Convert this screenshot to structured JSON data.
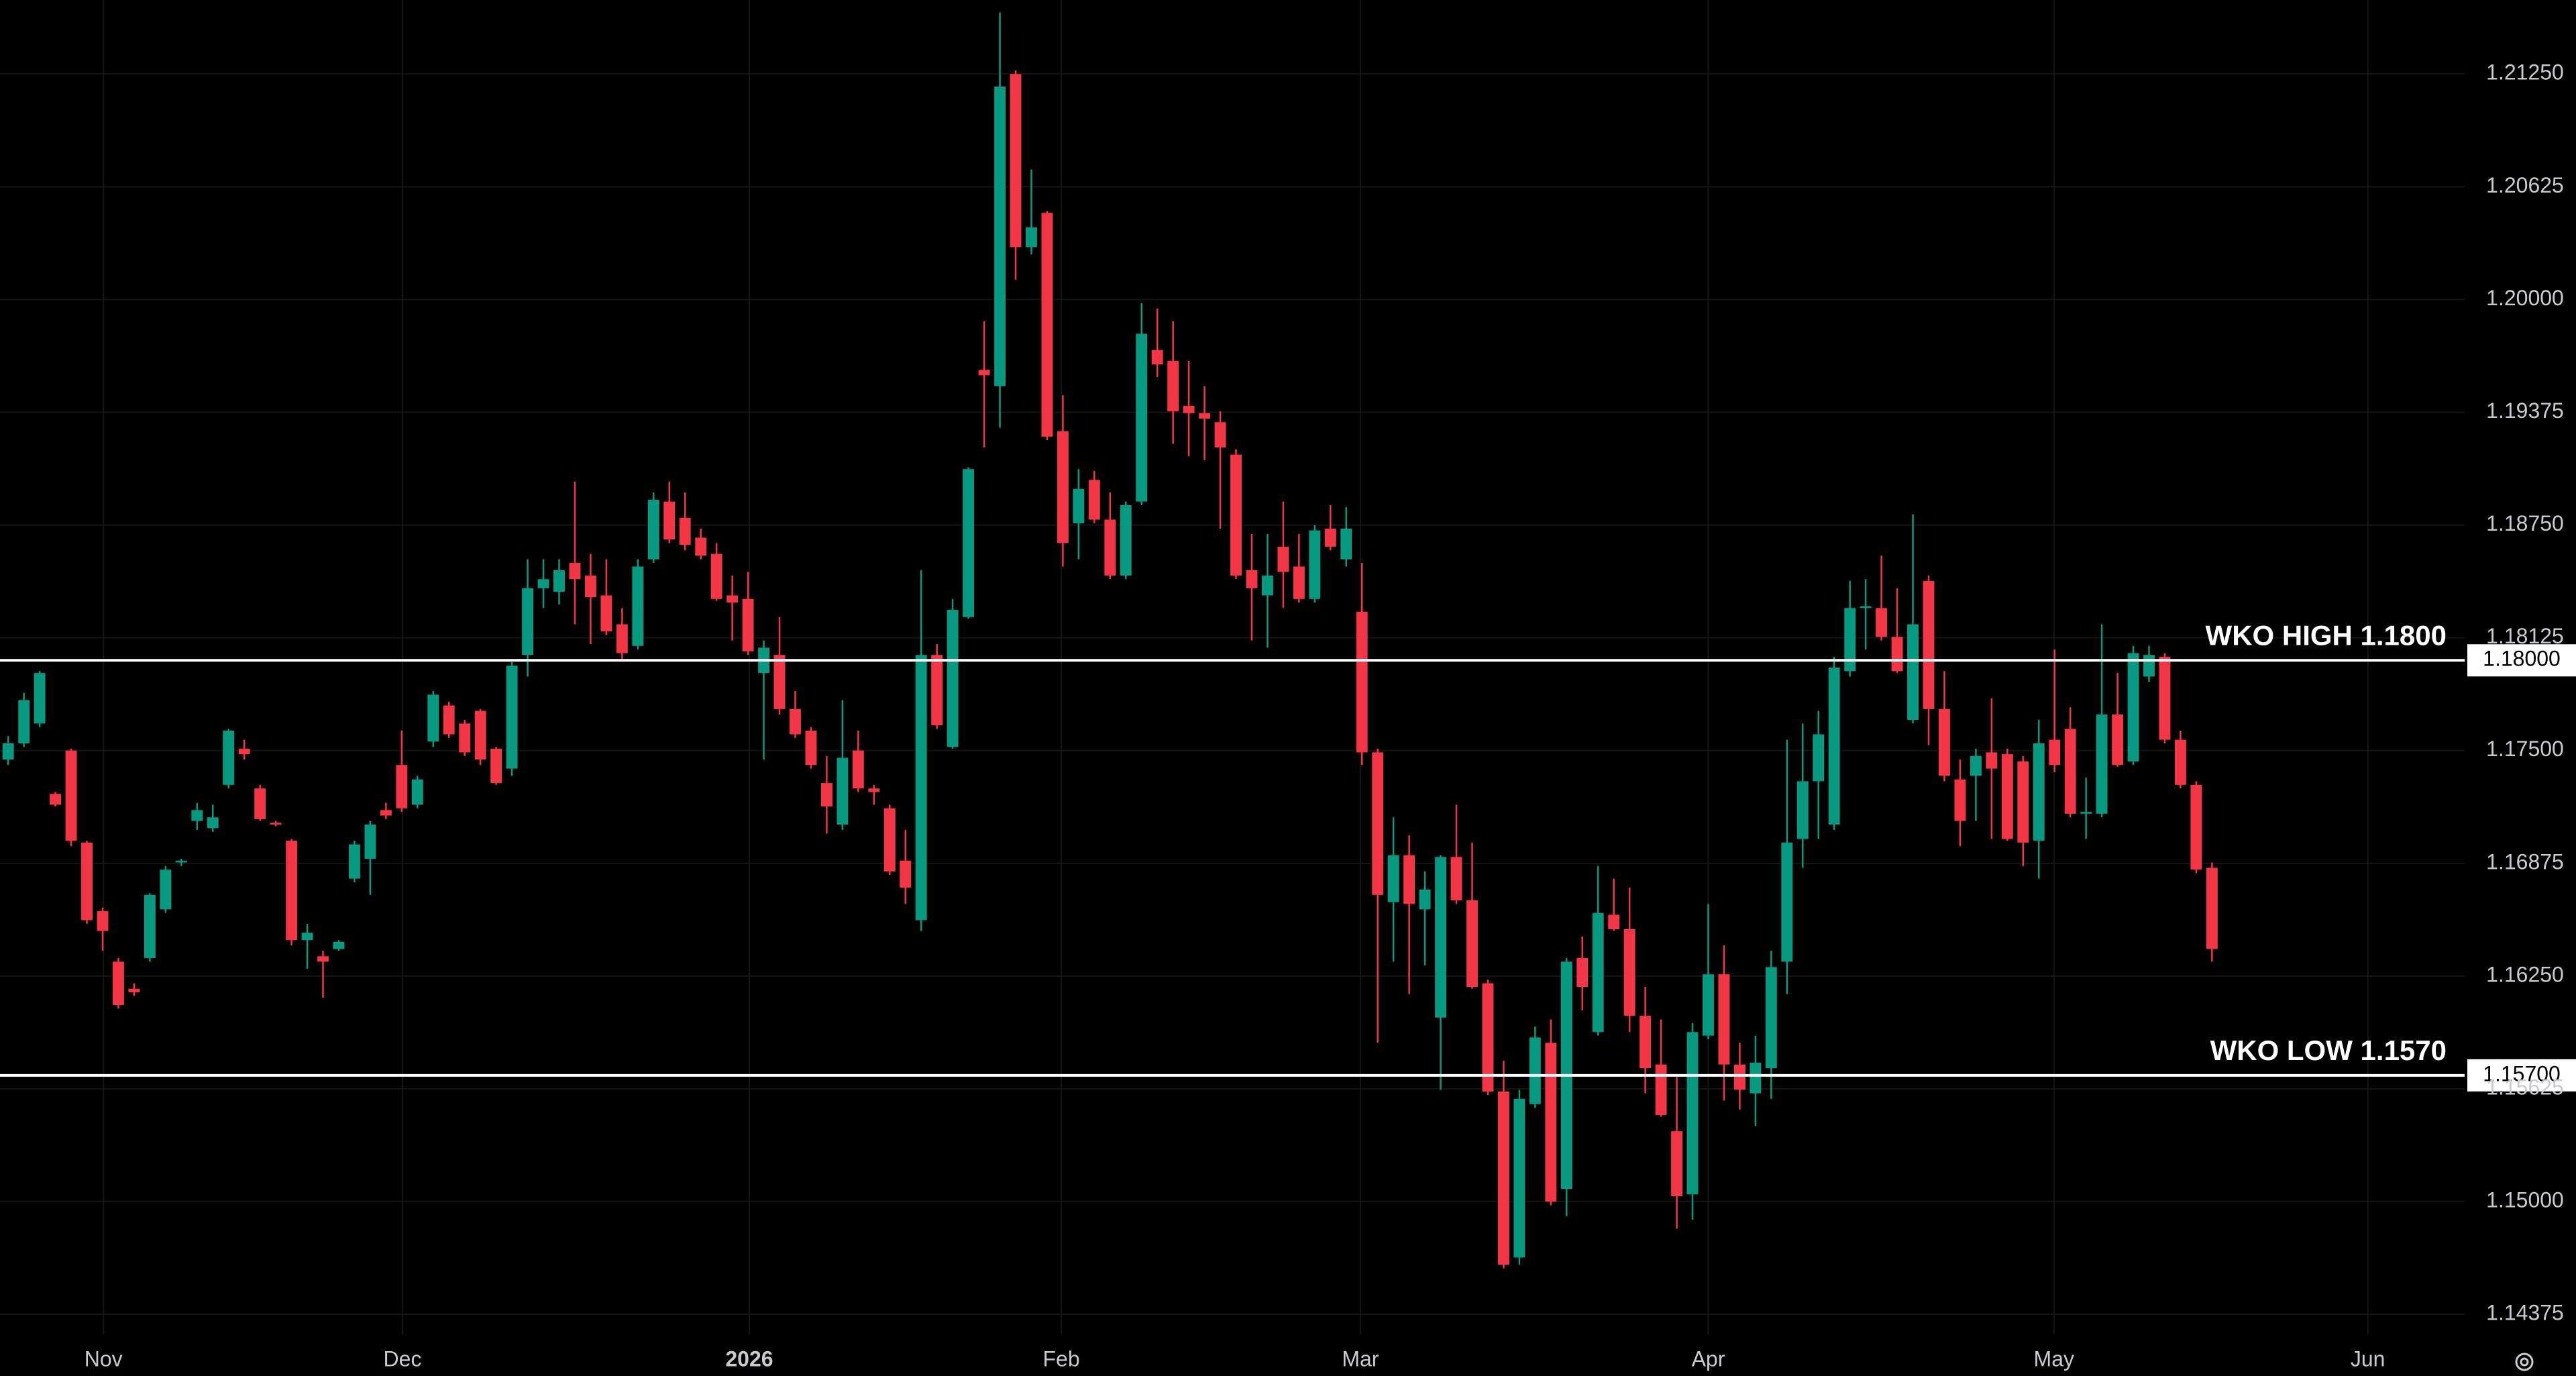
{
  "chart_data": {
    "type": "candlestick",
    "up_color": "#089981",
    "down_color": "#f23645",
    "grid": true,
    "xlim": [
      -0.52,
      156.05
    ],
    "xticks": [
      {
        "value": 6.05,
        "label": "Nov"
      },
      {
        "value": 25.05,
        "label": "Dec"
      },
      {
        "value": 47.08,
        "label": "2026"
      },
      {
        "value": 66.9,
        "label": "Feb"
      },
      {
        "value": 85.9,
        "label": "Mar"
      },
      {
        "value": 108.0,
        "label": "Apr"
      },
      {
        "value": 129.96,
        "label": "May"
      },
      {
        "value": 149.9,
        "label": "Jun"
      }
    ],
    "ylim": [
      1.14264,
      1.2166
    ],
    "yticks": [
      {
        "value": 1.14375,
        "label": "1.14375"
      },
      {
        "value": 1.15,
        "label": "1.15000"
      },
      {
        "value": 1.15625,
        "label": "1.15625"
      },
      {
        "value": 1.1625,
        "label": "1.16250"
      },
      {
        "value": 1.16875,
        "label": "1.16875"
      },
      {
        "value": 1.175,
        "label": "1.17500"
      },
      {
        "value": 1.18125,
        "label": "1.18125"
      },
      {
        "value": 1.1875,
        "label": "1.18750"
      },
      {
        "value": 1.19375,
        "label": "1.19375"
      },
      {
        "value": 1.2,
        "label": "1.20000"
      },
      {
        "value": 1.20625,
        "label": "1.20625"
      },
      {
        "value": 1.2125,
        "label": "1.21250"
      }
    ],
    "levels": [
      {
        "value": 1.18,
        "label": "WKO HIGH 1.1800",
        "price_label": "1.18000"
      },
      {
        "value": 1.157,
        "label": "WKO LOW 1.1570",
        "price_label": "1.15700"
      }
    ],
    "open": [
      1.1745,
      1.1754,
      1.1765,
      1.1726,
      1.175,
      1.1699,
      1.1661,
      1.1633,
      1.1618,
      1.1635,
      1.1662,
      1.1688,
      1.1711,
      1.1707,
      1.1731,
      1.1751,
      1.1729,
      1.171,
      1.17,
      1.1645,
      1.1636,
      1.164,
      1.1679,
      1.169,
      1.1717,
      1.1742,
      1.172,
      1.1755,
      1.1775,
      1.1765,
      1.1772,
      1.1751,
      1.174,
      1.1803,
      1.184,
      1.1838,
      1.1854,
      1.1847,
      1.1836,
      1.182,
      1.1808,
      1.1856,
      1.1888,
      1.1879,
      1.1868,
      1.1859,
      1.1836,
      1.1834,
      1.1793,
      1.1803,
      1.1773,
      1.1761,
      1.1732,
      1.1709,
      1.175,
      1.1729,
      1.1718,
      1.1689,
      1.1656,
      1.1803,
      1.1752,
      1.1824,
      1.1961,
      1.1952,
      1.2125,
      1.2029,
      1.2048,
      1.1927,
      1.1876,
      1.19,
      1.1878,
      1.1847,
      1.1888,
      1.1972,
      1.1966,
      1.1941,
      1.1937,
      1.1932,
      1.1914,
      1.185,
      1.1836,
      1.1863,
      1.1852,
      1.1834,
      1.1873,
      1.1856,
      1.1827,
      1.1749,
      1.1666,
      1.1692,
      1.1662,
      1.1602,
      1.1691,
      1.1667,
      1.1621,
      1.1561,
      1.1469,
      1.1554,
      1.1588,
      1.1507,
      1.1635,
      1.1594,
      1.1659,
      1.1651,
      1.1603,
      1.1576,
      1.1539,
      1.1504,
      1.1592,
      1.1626,
      1.1576,
      1.156,
      1.1574,
      1.1633,
      1.1701,
      1.1733,
      1.1709,
      1.1794,
      1.1829,
      1.1829,
      1.1813,
      1.1767,
      1.1844,
      1.1773,
      1.1734,
      1.1736,
      1.1749,
      1.1748,
      1.1744,
      1.17,
      1.1756,
      1.1762,
      1.1715,
      1.1715,
      1.177,
      1.1744,
      1.1791,
      1.1802,
      1.1756,
      1.1731,
      1.1685
    ],
    "high": [
      1.1758,
      1.1782,
      1.1794,
      1.1727,
      1.1751,
      1.17,
      1.1663,
      1.1635,
      1.1621,
      1.1671,
      1.1686,
      1.169,
      1.1721,
      1.172,
      1.1762,
      1.1756,
      1.1731,
      1.1711,
      1.1701,
      1.1654,
      1.1639,
      1.1645,
      1.17,
      1.1711,
      1.1721,
      1.1761,
      1.1736,
      1.1783,
      1.1777,
      1.1767,
      1.1773,
      1.1752,
      1.1799,
      1.1856,
      1.1856,
      1.1856,
      1.1899,
      1.1859,
      1.1856,
      1.1829,
      1.1856,
      1.1893,
      1.1899,
      1.1893,
      1.1873,
      1.1865,
      1.1847,
      1.1849,
      1.1811,
      1.1824,
      1.1783,
      1.1763,
      1.1747,
      1.1778,
      1.1761,
      1.1731,
      1.172,
      1.1706,
      1.185,
      1.1809,
      1.1834,
      1.1907,
      1.1988,
      1.2159,
      1.2127,
      1.2072,
      1.2049,
      1.1947,
      1.1906,
      1.1905,
      1.1893,
      1.1888,
      1.1998,
      1.1995,
      1.1988,
      1.1966,
      1.1952,
      1.1938,
      1.1917,
      1.187,
      1.187,
      1.1888,
      1.187,
      1.1875,
      1.1886,
      1.1885,
      1.1854,
      1.1751,
      1.1713,
      1.1703,
      1.1683,
      1.1692,
      1.172,
      1.1699,
      1.1623,
      1.1578,
      1.1562,
      1.1597,
      1.1601,
      1.1635,
      1.1647,
      1.1686,
      1.1679,
      1.1674,
      1.1619,
      1.1601,
      1.1569,
      1.1599,
      1.1665,
      1.1642,
      1.1588,
      1.1592,
      1.1639,
      1.1756,
      1.1765,
      1.1772,
      1.1802,
      1.1844,
      1.1845,
      1.1858,
      1.184,
      1.1881,
      1.1847,
      1.1794,
      1.1745,
      1.1751,
      1.1779,
      1.1751,
      1.1747,
      1.1767,
      1.1806,
      1.1774,
      1.1735,
      1.182,
      1.1793,
      1.1808,
      1.1808,
      1.1804,
      1.1761,
      1.1733,
      1.1688
    ],
    "low": [
      1.1742,
      1.1752,
      1.1763,
      1.1719,
      1.1697,
      1.1654,
      1.1639,
      1.1607,
      1.1614,
      1.1633,
      1.166,
      1.1686,
      1.1706,
      1.1705,
      1.1729,
      1.1745,
      1.1711,
      1.1708,
      1.1642,
      1.1629,
      1.1613,
      1.1639,
      1.1677,
      1.167,
      1.1712,
      1.1716,
      1.1718,
      1.1752,
      1.1757,
      1.1747,
      1.1742,
      1.1731,
      1.1736,
      1.1791,
      1.1829,
      1.1831,
      1.182,
      1.1809,
      1.1814,
      1.18,
      1.1806,
      1.1854,
      1.1865,
      1.1861,
      1.1856,
      1.1833,
      1.1811,
      1.1803,
      1.1745,
      1.177,
      1.1757,
      1.174,
      1.1704,
      1.1706,
      1.1727,
      1.172,
      1.1681,
      1.1665,
      1.165,
      1.1762,
      1.1751,
      1.1823,
      1.1918,
      1.1929,
      1.2011,
      1.2025,
      1.1922,
      1.1852,
      1.1856,
      1.1876,
      1.1845,
      1.1845,
      1.1886,
      1.1957,
      1.192,
      1.1913,
      1.1911,
      1.1873,
      1.1845,
      1.1811,
      1.1807,
      1.1829,
      1.1832,
      1.1832,
      1.1861,
      1.1852,
      1.1742,
      1.1588,
      1.1633,
      1.1615,
      1.1631,
      1.1562,
      1.1665,
      1.1618,
      1.1559,
      1.1463,
      1.1465,
      1.1552,
      1.1498,
      1.1492,
      1.1606,
      1.1592,
      1.165,
      1.1594,
      1.156,
      1.1547,
      1.1485,
      1.149,
      1.159,
      1.1556,
      1.1551,
      1.1542,
      1.1557,
      1.1615,
      1.1685,
      1.1701,
      1.1706,
      1.1791,
      1.1806,
      1.1811,
      1.1793,
      1.1765,
      1.1753,
      1.1733,
      1.1697,
      1.1711,
      1.1701,
      1.17,
      1.1686,
      1.1679,
      1.1738,
      1.1713,
      1.1701,
      1.1713,
      1.1741,
      1.1742,
      1.1788,
      1.1754,
      1.1729,
      1.1682,
      1.1633
    ],
    "close": [
      1.1754,
      1.1778,
      1.1793,
      1.172,
      1.17,
      1.1656,
      1.165,
      1.1609,
      1.1616,
      1.167,
      1.1684,
      1.1689,
      1.1717,
      1.1713,
      1.1761,
      1.1748,
      1.1712,
      1.1709,
      1.1645,
      1.1649,
      1.1633,
      1.1644,
      1.1698,
      1.1709,
      1.1714,
      1.1718,
      1.1734,
      1.1781,
      1.1759,
      1.1749,
      1.1745,
      1.1732,
      1.1797,
      1.184,
      1.1845,
      1.185,
      1.1845,
      1.1835,
      1.1816,
      1.1804,
      1.1852,
      1.1889,
      1.1867,
      1.1864,
      1.1858,
      1.1834,
      1.1832,
      1.1805,
      1.1807,
      1.1773,
      1.1759,
      1.1742,
      1.1719,
      1.1746,
      1.1729,
      1.1727,
      1.1683,
      1.1674,
      1.1803,
      1.1764,
      1.1828,
      1.1906,
      1.1958,
      1.2118,
      1.2029,
      1.204,
      1.1924,
      1.1865,
      1.1895,
      1.1878,
      1.1847,
      1.1886,
      1.1981,
      1.1964,
      1.1938,
      1.1937,
      1.1934,
      1.1918,
      1.1847,
      1.184,
      1.1847,
      1.1849,
      1.1834,
      1.1872,
      1.1863,
      1.1873,
      1.1749,
      1.167,
      1.1692,
      1.1665,
      1.1673,
      1.1691,
      1.1667,
      1.1619,
      1.1561,
      1.1465,
      1.1557,
      1.1591,
      1.15,
      1.1633,
      1.1619,
      1.166,
      1.1651,
      1.1603,
      1.1574,
      1.1548,
      1.1503,
      1.1594,
      1.1626,
      1.1576,
      1.1562,
      1.1577,
      1.163,
      1.1699,
      1.1733,
      1.1759,
      1.1796,
      1.1829,
      1.183,
      1.1813,
      1.1794,
      1.182,
      1.1773,
      1.1736,
      1.1711,
      1.1747,
      1.174,
      1.1701,
      1.1699,
      1.1754,
      1.1742,
      1.1715,
      1.1716,
      1.177,
      1.1742,
      1.1804,
      1.1803,
      1.1756,
      1.1731,
      1.1684,
      1.164
    ]
  }
}
